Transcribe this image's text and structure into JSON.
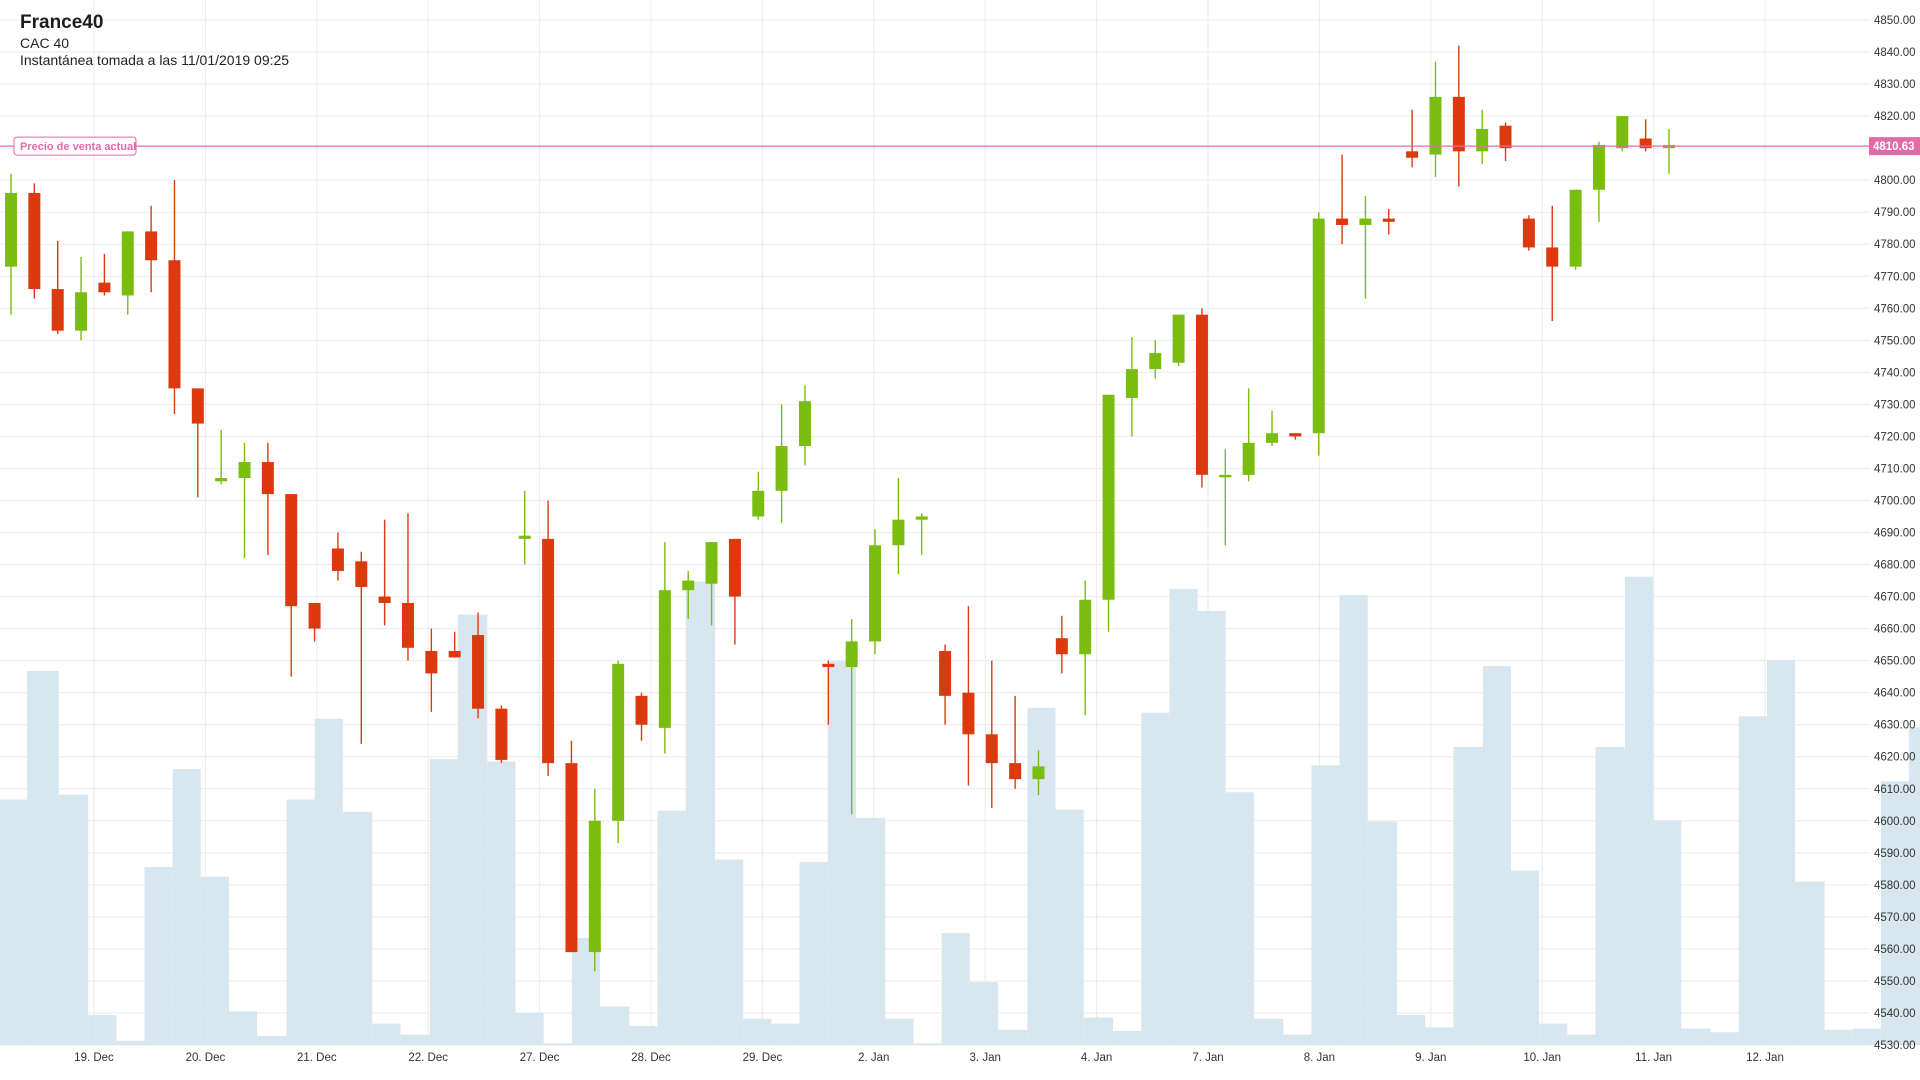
{
  "header": {
    "title": "France40",
    "subtitle": "CAC 40",
    "snapshot": "Instantánea tomada a las 11/01/2019 09:25"
  },
  "colors": {
    "up": "#7bbd0e",
    "down": "#dc3a0e",
    "volume": "#d8e6f0",
    "grid": "#ebebeb",
    "price_line": "#e36aa9",
    "axis_text": "#333333"
  },
  "price_line": {
    "label": "Precio de venta actual",
    "value": 4810.63,
    "value_label": "4810.63"
  },
  "chart_data": {
    "type": "candlestick",
    "title": "France40",
    "y_axis": {
      "side": "right",
      "range": [
        4530,
        4850
      ],
      "ticks": [
        "4530.00",
        "4540.00",
        "4550.00",
        "4560.00",
        "4570.00",
        "4580.00",
        "4590.00",
        "4600.00",
        "4610.00",
        "4620.00",
        "4630.00",
        "4640.00",
        "4650.00",
        "4660.00",
        "4670.00",
        "4680.00",
        "4690.00",
        "4700.00",
        "4710.00",
        "4720.00",
        "4730.00",
        "4740.00",
        "4750.00",
        "4760.00",
        "4770.00",
        "4780.00",
        "4790.00",
        "4800.00",
        "4810.00",
        "4820.00",
        "4830.00",
        "4840.00",
        "4850.00"
      ]
    },
    "x_axis": {
      "labels": [
        "19. Dec",
        "20. Dec",
        "21. Dec",
        "22. Dec",
        "27. Dec",
        "28. Dec",
        "29. Dec",
        "2. Jan",
        "3. Jan",
        "4. Jan",
        "7. Jan",
        "8. Jan",
        "9. Jan",
        "10. Jan",
        "11. Jan",
        "12. Jan"
      ]
    },
    "grid": true,
    "candles": [
      {
        "o": 4773,
        "h": 4802,
        "l": 4758,
        "c": 4796
      },
      {
        "o": 4796,
        "h": 4799,
        "l": 4763,
        "c": 4766
      },
      {
        "o": 4766,
        "h": 4781,
        "l": 4752,
        "c": 4753
      },
      {
        "o": 4753,
        "h": 4776,
        "l": 4750,
        "c": 4765
      },
      {
        "o": 4768,
        "h": 4777,
        "l": 4764,
        "c": 4765
      },
      {
        "o": 4764,
        "h": 4784,
        "l": 4758,
        "c": 4784
      },
      {
        "o": 4784,
        "h": 4792,
        "l": 4765,
        "c": 4775
      },
      {
        "o": 4775,
        "h": 4800,
        "l": 4727,
        "c": 4735
      },
      {
        "o": 4735,
        "h": 4735,
        "l": 4701,
        "c": 4724
      },
      {
        "o": 4706,
        "h": 4722,
        "l": 4705,
        "c": 4707
      },
      {
        "o": 4707,
        "h": 4718,
        "l": 4682,
        "c": 4712
      },
      {
        "o": 4712,
        "h": 4718,
        "l": 4683,
        "c": 4702
      },
      {
        "o": 4702,
        "h": 4702,
        "l": 4645,
        "c": 4667
      },
      {
        "o": 4668,
        "h": 4668,
        "l": 4656,
        "c": 4660
      },
      {
        "o": 4685,
        "h": 4690,
        "l": 4675,
        "c": 4678
      },
      {
        "o": 4681,
        "h": 4684,
        "l": 4624,
        "c": 4673
      },
      {
        "o": 4670,
        "h": 4694,
        "l": 4661,
        "c": 4668
      },
      {
        "o": 4668,
        "h": 4696,
        "l": 4650,
        "c": 4654
      },
      {
        "o": 4653,
        "h": 4660,
        "l": 4634,
        "c": 4646
      },
      {
        "o": 4653,
        "h": 4659,
        "l": 4651,
        "c": 4651
      },
      {
        "o": 4658,
        "h": 4665,
        "l": 4632,
        "c": 4635
      },
      {
        "o": 4635,
        "h": 4636,
        "l": 4618,
        "c": 4619
      },
      {
        "o": 4688,
        "h": 4703,
        "l": 4680,
        "c": 4689
      },
      {
        "o": 4688,
        "h": 4700,
        "l": 4614,
        "c": 4618
      },
      {
        "o": 4618,
        "h": 4625,
        "l": 4560,
        "c": 4559
      },
      {
        "o": 4559,
        "h": 4610,
        "l": 4553,
        "c": 4600
      },
      {
        "o": 4600,
        "h": 4650,
        "l": 4593,
        "c": 4649
      },
      {
        "o": 4639,
        "h": 4640,
        "l": 4625,
        "c": 4630
      },
      {
        "o": 4629,
        "h": 4687,
        "l": 4621,
        "c": 4672
      },
      {
        "o": 4672,
        "h": 4678,
        "l": 4663,
        "c": 4675
      },
      {
        "o": 4674,
        "h": 4687,
        "l": 4661,
        "c": 4687
      },
      {
        "o": 4688,
        "h": 4688,
        "l": 4655,
        "c": 4670
      },
      {
        "o": 4695,
        "h": 4709,
        "l": 4694,
        "c": 4703
      },
      {
        "o": 4703,
        "h": 4730,
        "l": 4693,
        "c": 4717
      },
      {
        "o": 4717,
        "h": 4736,
        "l": 4711,
        "c": 4731
      },
      {
        "o": 4649,
        "h": 4650,
        "l": 4630,
        "c": 4648
      },
      {
        "o": 4648,
        "h": 4663,
        "l": 4602,
        "c": 4656
      },
      {
        "o": 4656,
        "h": 4691,
        "l": 4652,
        "c": 4686
      },
      {
        "o": 4686,
        "h": 4707,
        "l": 4677,
        "c": 4694
      },
      {
        "o": 4694,
        "h": 4696,
        "l": 4683,
        "c": 4695
      },
      {
        "o": 4653,
        "h": 4655,
        "l": 4630,
        "c": 4639
      },
      {
        "o": 4640,
        "h": 4667,
        "l": 4611,
        "c": 4627
      },
      {
        "o": 4627,
        "h": 4650,
        "l": 4604,
        "c": 4618
      },
      {
        "o": 4618,
        "h": 4639,
        "l": 4610,
        "c": 4613
      },
      {
        "o": 4613,
        "h": 4622,
        "l": 4608,
        "c": 4617
      },
      {
        "o": 4657,
        "h": 4664,
        "l": 4646,
        "c": 4652
      },
      {
        "o": 4652,
        "h": 4675,
        "l": 4633,
        "c": 4669
      },
      {
        "o": 4669,
        "h": 4733,
        "l": 4659,
        "c": 4733
      },
      {
        "o": 4732,
        "h": 4751,
        "l": 4720,
        "c": 4741
      },
      {
        "o": 4741,
        "h": 4750,
        "l": 4738,
        "c": 4746
      },
      {
        "o": 4743,
        "h": 4758,
        "l": 4742,
        "c": 4758
      },
      {
        "o": 4758,
        "h": 4760,
        "l": 4704,
        "c": 4708
      },
      {
        "o": 4708,
        "h": 4716,
        "l": 4686,
        "c": 4708
      },
      {
        "o": 4708,
        "h": 4735,
        "l": 4706,
        "c": 4718
      },
      {
        "o": 4718,
        "h": 4728,
        "l": 4717,
        "c": 4721
      },
      {
        "o": 4721,
        "h": 4721,
        "l": 4719,
        "c": 4720
      },
      {
        "o": 4721,
        "h": 4790,
        "l": 4714,
        "c": 4788
      },
      {
        "o": 4788,
        "h": 4808,
        "l": 4780,
        "c": 4786
      },
      {
        "o": 4786,
        "h": 4795,
        "l": 4763,
        "c": 4788
      },
      {
        "o": 4788,
        "h": 4791,
        "l": 4783,
        "c": 4787
      },
      {
        "o": 4809,
        "h": 4822,
        "l": 4804,
        "c": 4807
      },
      {
        "o": 4808,
        "h": 4837,
        "l": 4801,
        "c": 4826
      },
      {
        "o": 4826,
        "h": 4842,
        "l": 4798,
        "c": 4809
      },
      {
        "o": 4809,
        "h": 4822,
        "l": 4805,
        "c": 4816
      },
      {
        "o": 4817,
        "h": 4818,
        "l": 4806,
        "c": 4810
      },
      {
        "o": 4788,
        "h": 4789,
        "l": 4778,
        "c": 4779
      },
      {
        "o": 4779,
        "h": 4792,
        "l": 4756,
        "c": 4773
      },
      {
        "o": 4773,
        "h": 4797,
        "l": 4772,
        "c": 4797
      },
      {
        "o": 4797,
        "h": 4812,
        "l": 4787,
        "c": 4811
      },
      {
        "o": 4810,
        "h": 4820,
        "l": 4809,
        "c": 4820
      },
      {
        "o": 4813,
        "h": 4819,
        "l": 4809,
        "c": 4810
      },
      {
        "o": 4810,
        "h": 4816,
        "l": 4802,
        "c": 4811
      }
    ],
    "volume": [
      {
        "x0": 0,
        "x1": 22,
        "top": 653
      },
      {
        "x0": 22,
        "x1": 48,
        "top": 548
      },
      {
        "x0": 48,
        "x1": 72,
        "top": 649
      },
      {
        "x0": 72,
        "x1": 95,
        "top": 829
      },
      {
        "x0": 95,
        "x1": 118,
        "top": 850
      },
      {
        "x0": 118,
        "x1": 141,
        "top": 708
      },
      {
        "x0": 141,
        "x1": 164,
        "top": 628
      },
      {
        "x0": 164,
        "x1": 187,
        "top": 716
      },
      {
        "x0": 187,
        "x1": 210,
        "top": 826
      },
      {
        "x0": 210,
        "x1": 234,
        "top": 846
      },
      {
        "x0": 234,
        "x1": 257,
        "top": 653
      },
      {
        "x0": 257,
        "x1": 280,
        "top": 587
      },
      {
        "x0": 280,
        "x1": 304,
        "top": 663
      },
      {
        "x0": 304,
        "x1": 327,
        "top": 836
      },
      {
        "x0": 327,
        "x1": 351,
        "top": 845
      },
      {
        "x0": 351,
        "x1": 374,
        "top": 620
      },
      {
        "x0": 374,
        "x1": 398,
        "top": 502
      },
      {
        "x0": 398,
        "x1": 421,
        "top": 622
      },
      {
        "x0": 421,
        "x1": 444,
        "top": 827
      },
      {
        "x0": 444,
        "x1": 467,
        "top": 852
      },
      {
        "x0": 467,
        "x1": 490,
        "top": 766
      },
      {
        "x0": 490,
        "x1": 514,
        "top": 822
      },
      {
        "x0": 514,
        "x1": 537,
        "top": 838
      },
      {
        "x0": 537,
        "x1": 560,
        "top": 662
      },
      {
        "x0": 560,
        "x1": 584,
        "top": 475
      },
      {
        "x0": 584,
        "x1": 607,
        "top": 702
      },
      {
        "x0": 607,
        "x1": 630,
        "top": 832
      },
      {
        "x0": 630,
        "x1": 653,
        "top": 836
      },
      {
        "x0": 653,
        "x1": 676,
        "top": 704
      },
      {
        "x0": 676,
        "x1": 699,
        "top": 540
      },
      {
        "x0": 699,
        "x1": 723,
        "top": 668
      },
      {
        "x0": 723,
        "x1": 746,
        "top": 832
      },
      {
        "x0": 746,
        "x1": 769,
        "top": 852
      },
      {
        "x0": 769,
        "x1": 792,
        "top": 762
      },
      {
        "x0": 792,
        "x1": 815,
        "top": 802
      },
      {
        "x0": 815,
        "x1": 839,
        "top": 841
      },
      {
        "x0": 839,
        "x1": 862,
        "top": 578
      },
      {
        "x0": 862,
        "x1": 885,
        "top": 661
      },
      {
        "x0": 885,
        "x1": 909,
        "top": 831
      },
      {
        "x0": 909,
        "x1": 932,
        "top": 842
      },
      {
        "x0": 932,
        "x1": 955,
        "top": 582
      },
      {
        "x0": 955,
        "x1": 978,
        "top": 481
      },
      {
        "x0": 978,
        "x1": 1001,
        "top": 499
      },
      {
        "x0": 1001,
        "x1": 1024,
        "top": 647
      },
      {
        "x0": 1024,
        "x1": 1048,
        "top": 832
      },
      {
        "x0": 1048,
        "x1": 1071,
        "top": 845
      },
      {
        "x0": 1071,
        "x1": 1094,
        "top": 625
      },
      {
        "x0": 1094,
        "x1": 1117,
        "top": 486
      },
      {
        "x0": 1117,
        "x1": 1141,
        "top": 671
      },
      {
        "x0": 1141,
        "x1": 1164,
        "top": 829
      },
      {
        "x0": 1164,
        "x1": 1187,
        "top": 839
      },
      {
        "x0": 1187,
        "x1": 1211,
        "top": 610
      },
      {
        "x0": 1211,
        "x1": 1234,
        "top": 544
      },
      {
        "x0": 1234,
        "x1": 1257,
        "top": 711
      },
      {
        "x0": 1257,
        "x1": 1280,
        "top": 836
      },
      {
        "x0": 1280,
        "x1": 1303,
        "top": 845
      },
      {
        "x0": 1303,
        "x1": 1327,
        "top": 610
      },
      {
        "x0": 1327,
        "x1": 1350,
        "top": 471
      },
      {
        "x0": 1350,
        "x1": 1373,
        "top": 670
      },
      {
        "x0": 1373,
        "x1": 1397,
        "top": 840
      },
      {
        "x0": 1397,
        "x1": 1420,
        "top": 843
      },
      {
        "x0": 1420,
        "x1": 1443,
        "top": 585
      },
      {
        "x0": 1443,
        "x1": 1466,
        "top": 539
      },
      {
        "x0": 1466,
        "x1": 1490,
        "top": 720
      },
      {
        "x0": 1490,
        "x1": 1513,
        "top": 841
      },
      {
        "x0": 1513,
        "x1": 1536,
        "top": 840
      },
      {
        "x0": 1536,
        "x1": 1559,
        "top": 638
      },
      {
        "x0": 1559,
        "x1": 1583,
        "top": 594
      },
      {
        "x0": 1583,
        "x1": 1606,
        "top": 702
      },
      {
        "x0": 1606,
        "x1": 1629,
        "top": 839
      },
      {
        "x0": 1629,
        "x1": 1652,
        "top": 845
      },
      {
        "x0": 1652,
        "x1": 1682,
        "top": 834
      }
    ]
  }
}
